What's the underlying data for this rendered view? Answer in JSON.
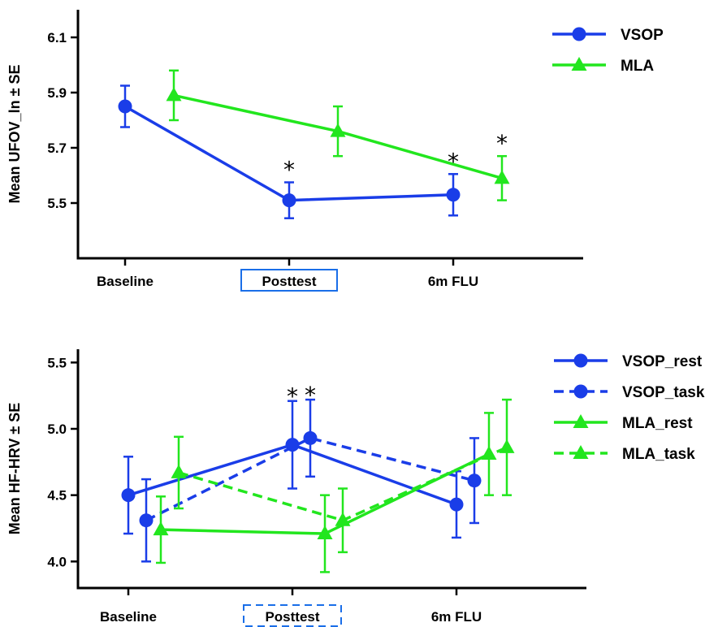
{
  "chart_data": [
    {
      "type": "line",
      "title": "",
      "xlabel": "",
      "ylabel": "Mean UFOV_ln ± SE",
      "categories": [
        "Baseline",
        "Posttest",
        "6m FLU"
      ],
      "highlighted_category": "Posttest",
      "highlight_style": "solid",
      "ylim": [
        5.3,
        6.2
      ],
      "yticks": [
        "6.1",
        "5.9",
        "5.7",
        "5.5"
      ],
      "legend_position": "top-right",
      "series": [
        {
          "name": "VSOP",
          "color": "#1a3de8",
          "marker": "circle",
          "dash": "solid",
          "values": [
            5.85,
            5.51,
            5.53
          ],
          "se": [
            0.075,
            0.065,
            0.075
          ],
          "significance": [
            "",
            "*",
            "*"
          ]
        },
        {
          "name": "MLA",
          "color": "#22e61e",
          "marker": "triangle",
          "dash": "solid",
          "values": [
            5.89,
            5.76,
            5.59
          ],
          "se": [
            0.09,
            0.09,
            0.08
          ],
          "significance": [
            "",
            "",
            "*"
          ]
        }
      ]
    },
    {
      "type": "line",
      "title": "",
      "xlabel": "",
      "ylabel": "Mean HF-HRV ± SE",
      "categories": [
        "Baseline",
        "Posttest",
        "6m FLU"
      ],
      "highlighted_category": "Posttest",
      "highlight_style": "dashed",
      "ylim": [
        3.8,
        5.6
      ],
      "yticks": [
        "5.5",
        "5.0",
        "4.5",
        "4.0"
      ],
      "legend_position": "top-right",
      "series": [
        {
          "name": "VSOP_rest",
          "color": "#1a3de8",
          "marker": "circle",
          "dash": "solid",
          "values": [
            4.5,
            4.88,
            4.43
          ],
          "se": [
            0.29,
            0.33,
            0.25
          ],
          "significance": [
            "",
            "*",
            ""
          ]
        },
        {
          "name": "VSOP_task",
          "color": "#1a3de8",
          "marker": "circle",
          "dash": "dashed",
          "values": [
            4.31,
            4.93,
            4.61
          ],
          "se": [
            0.31,
            0.29,
            0.32
          ],
          "significance": [
            "",
            "*",
            ""
          ]
        },
        {
          "name": "MLA_rest",
          "color": "#22e61e",
          "marker": "triangle",
          "dash": "solid",
          "values": [
            4.24,
            4.21,
            4.81
          ],
          "se": [
            0.25,
            0.29,
            0.31
          ],
          "significance": [
            "",
            "",
            ""
          ]
        },
        {
          "name": "MLA_task",
          "color": "#22e61e",
          "marker": "triangle",
          "dash": "dashed",
          "values": [
            4.67,
            4.31,
            4.86
          ],
          "se": [
            0.27,
            0.24,
            0.36
          ],
          "significance": [
            "",
            "",
            ""
          ]
        }
      ]
    }
  ]
}
